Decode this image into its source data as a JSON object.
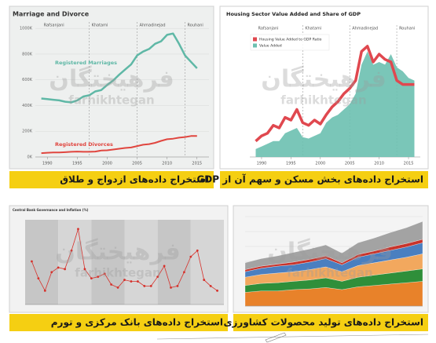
{
  "watermark": {
    "fa": "فرهیختگان",
    "en": "farhikhtegan"
  },
  "panels": [
    {
      "caption": "استخراج داده‌های ازدواج و طلاق",
      "chart": {
        "type": "line",
        "title": "Marriage and Divorce",
        "x": [
          1989,
          1990,
          1991,
          1992,
          1993,
          1994,
          1995,
          1996,
          1997,
          1998,
          1999,
          2000,
          2001,
          2002,
          2003,
          2004,
          2005,
          2006,
          2007,
          2008,
          2009,
          2010,
          2011,
          2012,
          2013,
          2014,
          2015
        ],
        "xlim": [
          1988,
          2017
        ],
        "xticks": [
          1990,
          1995,
          2000,
          2005,
          2010,
          2015
        ],
        "ylim": [
          0,
          1050
        ],
        "yticks": [
          {
            "value": 0,
            "label": "0K"
          },
          {
            "value": 200,
            "label": "200K"
          },
          {
            "value": 400,
            "label": "400K"
          },
          {
            "value": 600,
            "label": "600K"
          },
          {
            "value": 800,
            "label": "800K"
          },
          {
            "value": 1000,
            "label": "1000K"
          }
        ],
        "eras": [
          {
            "name": "Rafsanjani",
            "start": 1989
          },
          {
            "name": "Khatami",
            "start": 1997
          },
          {
            "name": "Ahmadinejad",
            "start": 2005
          },
          {
            "name": "Rouhani",
            "start": 2013
          }
        ],
        "series": [
          {
            "name": "Registered Marriages",
            "color": "#5fb8a6",
            "values": [
              455,
              450,
              445,
              440,
              430,
              425,
              440,
              470,
              480,
              510,
              520,
              560,
              595,
              640,
              680,
              720,
              790,
              820,
              840,
              880,
              900,
              950,
              960,
              880,
              790,
              740,
              690
            ]
          },
          {
            "name": "Registered Divorces",
            "color": "#e0463f",
            "values": [
              30,
              33,
              35,
              35,
              37,
              40,
              42,
              40,
              40,
              42,
              50,
              52,
              58,
              64,
              70,
              74,
              85,
              95,
              100,
              110,
              125,
              138,
              142,
              150,
              155,
              163,
              163
            ]
          }
        ]
      }
    },
    {
      "caption": "استخراج داده‌های بخش مسکن و سهم آن از GDP",
      "chart": {
        "type": "line",
        "title": "Housing Sector Value Added and Share of GDP",
        "x": [
          1989,
          1990,
          1991,
          1992,
          1993,
          1994,
          1995,
          1996,
          1997,
          1998,
          1999,
          2000,
          2001,
          2002,
          2003,
          2004,
          2005,
          2006,
          2007,
          2008,
          2009,
          2010,
          2011,
          2012,
          2013,
          2014,
          2015,
          2016
        ],
        "xlim": [
          1988,
          2017
        ],
        "xticks": [
          1990,
          1995,
          2000,
          2005,
          2010,
          2015
        ],
        "ylim": [
          0,
          100
        ],
        "eras": [
          {
            "name": "Rafsanjani",
            "start": 1989
          },
          {
            "name": "Khatami",
            "start": 1997
          },
          {
            "name": "Ahmadinejad",
            "start": 2005
          },
          {
            "name": "Rouhani",
            "start": 2013
          }
        ],
        "series": [
          {
            "name": "Housing Value Added to GDP Ratio",
            "color": "#e0484f",
            "kind": "line",
            "values": [
              12,
              16,
              18,
              24,
              22,
              30,
              28,
              36,
              26,
              24,
              28,
              25,
              32,
              38,
              42,
              48,
              52,
              58,
              80,
              84,
              72,
              78,
              74,
              72,
              58,
              55,
              55,
              55
            ]
          },
          {
            "name": "Value Added",
            "color": "#6cc0b0",
            "kind": "area",
            "values": [
              6,
              8,
              10,
              12,
              12,
              18,
              20,
              22,
              15,
              14,
              16,
              18,
              26,
              30,
              32,
              36,
              40,
              48,
              70,
              80,
              70,
              72,
              70,
              78,
              68,
              65,
              60,
              58
            ]
          }
        ]
      }
    },
    {
      "caption": "استخراج داده‌های بانک مرکزی و تورم",
      "chart": {
        "type": "line",
        "title": "Central Bank Governance and Inflation (%)",
        "markers": true,
        "x": [
          1988,
          1989,
          1990,
          1991,
          1992,
          1993,
          1994,
          1995,
          1996,
          1997,
          1998,
          1999,
          2000,
          2001,
          2002,
          2003,
          2004,
          2005,
          2006,
          2007,
          2008,
          2009,
          2010,
          2011,
          2012,
          2013,
          2014,
          2015,
          2016
        ],
        "xlim": [
          1987,
          2017
        ],
        "ylim": [
          0,
          55
        ],
        "series": [
          {
            "color": "#d6322c",
            "values": [
              28,
              17,
              9,
              21,
              24,
              23,
              35,
              49,
              23,
              17,
              18,
              20,
              13,
              11,
              16,
              15,
              15,
              12,
              12,
              18,
              25,
              11,
              12,
              21,
              31,
              35,
              16,
              12,
              9
            ]
          }
        ]
      }
    },
    {
      "caption": "استخراج داده‌های تولید محصولات کشاورزی",
      "chart": {
        "type": "area",
        "categories": [
          null,
          null,
          null,
          null,
          null,
          null,
          null,
          null,
          null,
          null,
          null,
          null
        ],
        "ylim": [
          0,
          130
        ],
        "series": [
          {
            "color": "#e8822a",
            "values": [
              20,
              22,
              22,
              24,
              25,
              27,
              24,
              28,
              30,
              32,
              34,
              36
            ]
          },
          {
            "color": "#2f8f3a",
            "values": [
              10,
              11,
              12,
              12,
              13,
              14,
              12,
              14,
              15,
              16,
              17,
              18
            ]
          },
          {
            "color": "#f2a85e",
            "values": [
              12,
              13,
              14,
              14,
              15,
              16,
              14,
              17,
              18,
              19,
              20,
              22
            ]
          },
          {
            "color": "#4a7fc0",
            "values": [
              8,
              9,
              10,
              10,
              11,
              12,
              10,
              12,
              13,
              14,
              15,
              16
            ]
          },
          {
            "color": "#c8342c",
            "values": [
              3,
              3,
              3,
              4,
              4,
              4,
              3,
              4,
              4,
              5,
              5,
              5
            ]
          },
          {
            "color": "#a3a3a3",
            "values": [
              10,
              11,
              12,
              14,
              15,
              16,
              14,
              17,
              19,
              21,
              23,
              26
            ]
          }
        ]
      }
    }
  ]
}
